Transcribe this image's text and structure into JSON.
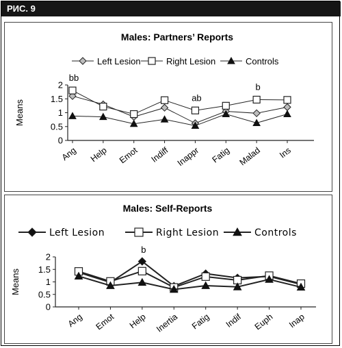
{
  "figure_label": "РИС. 9",
  "chart_data": [
    {
      "type": "line",
      "title": "Males: Partners’ Reports",
      "xlabel": "",
      "ylabel": "Means",
      "ylim": [
        0,
        2
      ],
      "yticks": [
        "0",
        "0.5",
        "1",
        "1.5",
        "2"
      ],
      "categories": [
        "Ang",
        "Help",
        "Emot",
        "Indiff",
        "Inappr",
        "Fatig",
        "Malad",
        "Ins"
      ],
      "series": [
        {
          "name": "Left Lesion",
          "marker": "diamond",
          "values": [
            1.6,
            1.3,
            0.85,
            1.18,
            0.62,
            1.05,
            0.98,
            1.2
          ]
        },
        {
          "name": "Right Lesion",
          "marker": "square",
          "values": [
            1.8,
            1.22,
            0.95,
            1.45,
            1.08,
            1.25,
            1.47,
            1.46
          ]
        },
        {
          "name": "Controls",
          "marker": "triangle",
          "values": [
            0.88,
            0.85,
            0.6,
            0.76,
            0.53,
            0.95,
            0.63,
            0.95
          ]
        }
      ],
      "annotations": [
        {
          "text": "bb",
          "category": "Ang"
        },
        {
          "text": "ab",
          "category": "Inappr"
        },
        {
          "text": "b",
          "category": "Malad"
        }
      ],
      "legend": "top",
      "grid": false
    },
    {
      "type": "line",
      "title": "Males: Self-Reports",
      "xlabel": "",
      "ylabel": "Means",
      "ylim": [
        0,
        2
      ],
      "yticks": [
        "0",
        "0.5",
        "1",
        "1.5",
        "2"
      ],
      "categories": [
        "Ang",
        "Emot",
        "Help",
        "Inertia",
        "Fatig",
        "Indif",
        "Euph",
        "Inap"
      ],
      "series": [
        {
          "name": "Left Lesion",
          "marker": "diamond",
          "values": [
            1.38,
            0.98,
            1.82,
            0.83,
            1.33,
            1.16,
            1.22,
            0.9
          ]
        },
        {
          "name": "Right Lesion",
          "marker": "square",
          "values": [
            1.42,
            1.02,
            1.43,
            0.78,
            1.21,
            1.07,
            1.25,
            0.93
          ]
        },
        {
          "name": "Controls",
          "marker": "triangle",
          "values": [
            1.23,
            0.85,
            0.98,
            0.7,
            0.85,
            0.8,
            1.1,
            0.79
          ]
        }
      ],
      "annotations": [
        {
          "text": "b",
          "category": "Help"
        }
      ],
      "legend": "top",
      "grid": false
    }
  ]
}
